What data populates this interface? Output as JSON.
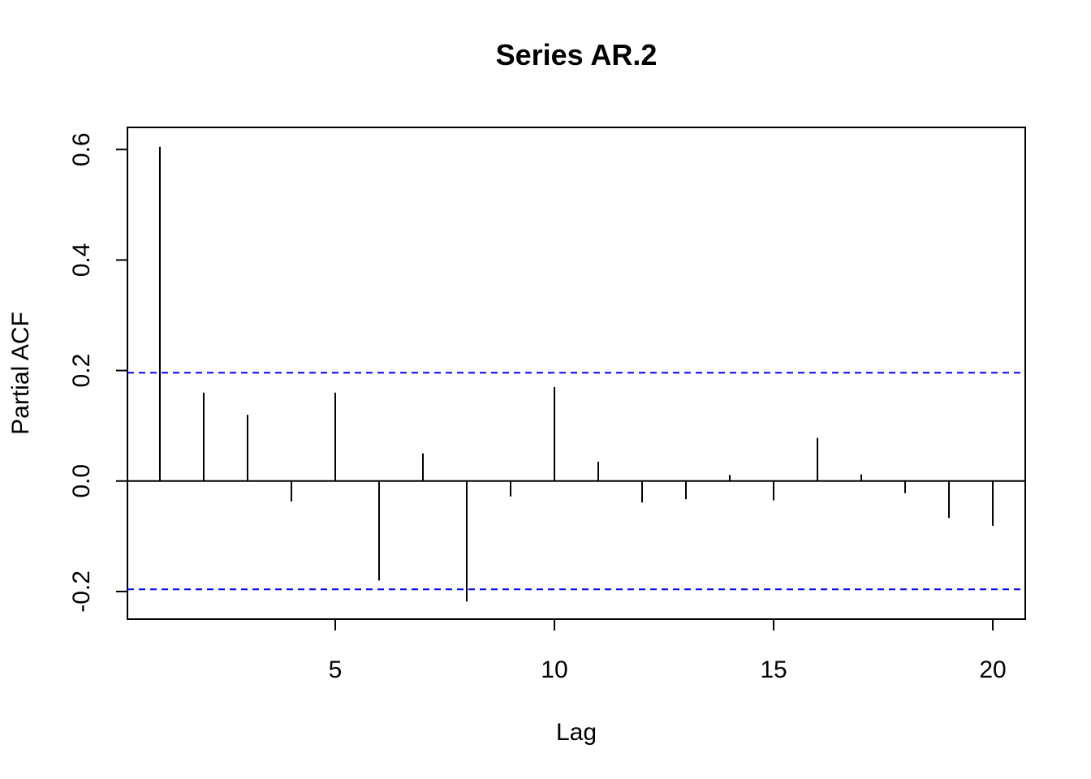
{
  "chart_data": {
    "type": "bar",
    "title": "Series  AR.2",
    "xlabel": "Lag",
    "ylabel": "Partial ACF",
    "x": [
      1,
      2,
      3,
      4,
      5,
      6,
      7,
      8,
      9,
      10,
      11,
      12,
      13,
      14,
      15,
      16,
      17,
      18,
      19,
      20
    ],
    "series": [
      {
        "values": [
          0.605,
          0.16,
          0.12,
          -0.037,
          0.16,
          -0.18,
          0.05,
          -0.218,
          -0.028,
          0.17,
          0.035,
          -0.039,
          -0.033,
          0.011,
          -0.035,
          0.078,
          0.012,
          -0.022,
          -0.067,
          -0.081
        ]
      }
    ],
    "confidence_bound": 0.196,
    "xlim": [
      0.26,
      20.74
    ],
    "ylim": [
      -0.25,
      0.64
    ],
    "xticks": [
      5,
      10,
      15,
      20
    ],
    "yticks": [
      -0.2,
      0.0,
      0.2,
      0.4,
      0.6
    ],
    "ytick_labels": [
      "-0.2",
      "0.0",
      "0.2",
      "0.4",
      "0.6"
    ],
    "grid": false,
    "colors": {
      "bars": "#000000",
      "confidence_lines": "#0000ff",
      "zero_line": "#000000",
      "frame": "#000000"
    }
  }
}
